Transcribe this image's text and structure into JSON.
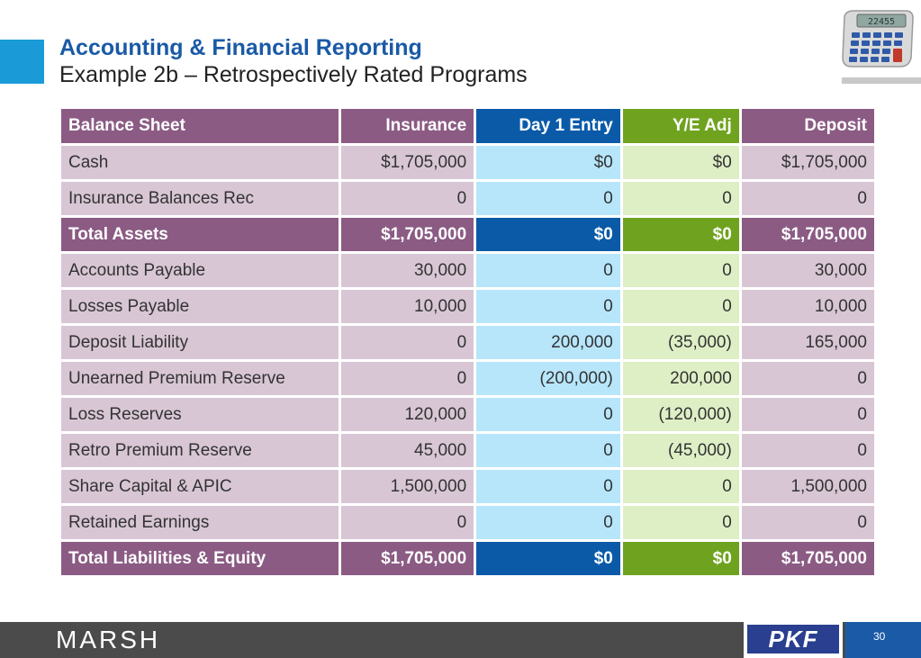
{
  "header": {
    "title": "Accounting & Financial Reporting",
    "subtitle": "Example 2b – Retrospectively Rated Programs",
    "calculator_display": "22455"
  },
  "table": {
    "columns": [
      "Balance Sheet",
      "Insurance",
      "Day 1 Entry",
      "Y/E Adj",
      "Deposit"
    ],
    "rows": [
      {
        "label": "Cash",
        "insurance": "$1,705,000",
        "day1": "$0",
        "ye": "$0",
        "deposit": "$1,705,000"
      },
      {
        "label": "Insurance Balances Rec",
        "insurance": "0",
        "day1": "0",
        "ye": "0",
        "deposit": "0"
      },
      {
        "label": "Total Assets",
        "insurance": "$1,705,000",
        "day1": "$0",
        "ye": "$0",
        "deposit": "$1,705,000"
      },
      {
        "label": "Accounts Payable",
        "insurance": "30,000",
        "day1": "0",
        "ye": "0",
        "deposit": "30,000"
      },
      {
        "label": "Losses Payable",
        "insurance": "10,000",
        "day1": "0",
        "ye": "0",
        "deposit": "10,000"
      },
      {
        "label": "Deposit Liability",
        "insurance": "0",
        "day1": "200,000",
        "ye": "(35,000)",
        "deposit": "165,000"
      },
      {
        "label": "Unearned Premium Reserve",
        "insurance": "0",
        "day1": "(200,000)",
        "ye": "200,000",
        "deposit": "0"
      },
      {
        "label": "Loss Reserves",
        "insurance": "120,000",
        "day1": "0",
        "ye": "(120,000)",
        "deposit": "0"
      },
      {
        "label": "Retro Premium Reserve",
        "insurance": "45,000",
        "day1": "0",
        "ye": "(45,000)",
        "deposit": "0"
      },
      {
        "label": "Share Capital & APIC",
        "insurance": "1,500,000",
        "day1": "0",
        "ye": "0",
        "deposit": "1,500,000"
      },
      {
        "label": "Retained Earnings",
        "insurance": "0",
        "day1": "0",
        "ye": "0",
        "deposit": "0"
      },
      {
        "label": "Total Liabilities & Equity",
        "insurance": "$1,705,000",
        "day1": "$0",
        "ye": "$0",
        "deposit": "$1,705,000"
      }
    ]
  },
  "footer": {
    "marsh_logo": "MARSH",
    "pkf_logo": "PKF",
    "page_number": "30"
  },
  "colors": {
    "title_blue": "#1a5aa6",
    "accent_blue": "#1a9bd7",
    "purple_header": "#8b5b84",
    "purple_light": "#d8c6d5",
    "blue_header": "#0a5aa8",
    "blue_light": "#b7e6fb",
    "green_header": "#6fa31f",
    "green_light": "#deefc6",
    "footer_gray": "#4b4b4b"
  }
}
